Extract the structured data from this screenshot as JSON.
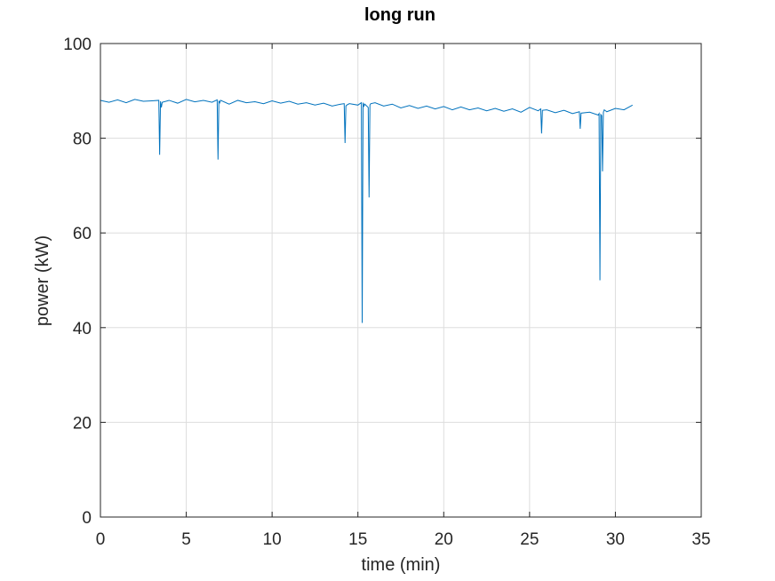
{
  "chart_data": {
    "type": "line",
    "title": "long run",
    "xlabel": "time (min)",
    "ylabel": "power (kW)",
    "xlim": [
      0,
      35
    ],
    "ylim": [
      0,
      100
    ],
    "xticks": [
      0,
      5,
      10,
      15,
      20,
      25,
      30,
      35
    ],
    "yticks": [
      0,
      20,
      40,
      60,
      80,
      100
    ],
    "grid": true,
    "line_color": "#0072bd",
    "series": [
      {
        "x": [
          0,
          0.5,
          1,
          1.5,
          2,
          2.5,
          3,
          3.4,
          3.45,
          3.5,
          3.55,
          3.6,
          4,
          4.5,
          5,
          5.5,
          6,
          6.5,
          6.8,
          6.85,
          6.9,
          6.95,
          7,
          7.5,
          8,
          8.5,
          9,
          9.5,
          10,
          10.5,
          11,
          11.5,
          12,
          12.5,
          13,
          13.5,
          14,
          14.2,
          14.25,
          14.3,
          14.35,
          14.5,
          15,
          15.2,
          15.25,
          15.3,
          15.35,
          15.4,
          15.6,
          15.65,
          15.7,
          15.75,
          16,
          16.5,
          17,
          17.5,
          18,
          18.5,
          19,
          19.5,
          20,
          20.5,
          21,
          21.5,
          22,
          22.5,
          23,
          23.5,
          24,
          24.5,
          25,
          25.5,
          25.65,
          25.7,
          25.75,
          26,
          26.5,
          27,
          27.5,
          27.9,
          27.95,
          28,
          28.5,
          29,
          29.05,
          29.1,
          29.15,
          29.2,
          29.25,
          29.3,
          29.35,
          29.5,
          30,
          30.5,
          31
        ],
        "y": [
          88,
          87.6,
          88.1,
          87.5,
          88.2,
          87.8,
          87.9,
          88.0,
          76.5,
          87.8,
          86.5,
          87.6,
          88.0,
          87.4,
          88.2,
          87.7,
          88.0,
          87.6,
          88.1,
          75.5,
          87.9,
          87.5,
          88.0,
          87.2,
          88.0,
          87.5,
          87.7,
          87.3,
          87.9,
          87.4,
          87.8,
          87.2,
          87.5,
          87.0,
          87.4,
          86.8,
          87.2,
          87.3,
          79.0,
          86.8,
          87.0,
          87.3,
          87.0,
          87.5,
          41.0,
          87.5,
          86.8,
          87.2,
          86.5,
          67.5,
          87.0,
          87.3,
          87.5,
          86.8,
          87.2,
          86.4,
          86.9,
          86.3,
          86.8,
          86.2,
          86.7,
          86.0,
          86.6,
          86.0,
          86.4,
          85.8,
          86.3,
          85.7,
          86.2,
          85.5,
          86.5,
          85.8,
          86.2,
          81.0,
          85.9,
          86.0,
          85.4,
          85.9,
          85.2,
          85.6,
          82.0,
          85.3,
          85.5,
          84.9,
          85.2,
          50.0,
          85.0,
          84.8,
          73.0,
          85.5,
          86.0,
          85.6,
          86.3,
          86.0,
          87.0
        ]
      }
    ]
  }
}
